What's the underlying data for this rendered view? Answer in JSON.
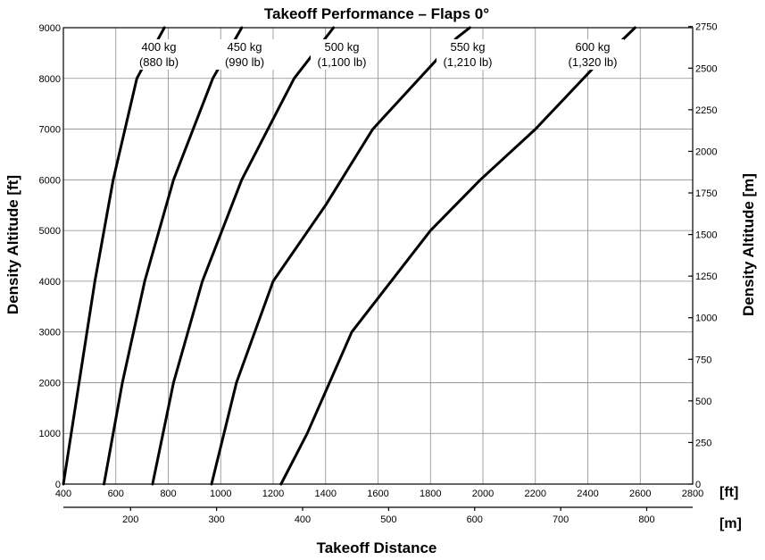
{
  "chart_data": {
    "type": "line",
    "title": "Takeoff Performance – Flaps 0°",
    "xlabel": "Takeoff Distance",
    "ylabel": "Density Altitude [ft]",
    "ylabel_right": "Density Altitude [m]",
    "x_unit_primary": "[ft]",
    "x_unit_secondary": "[m]",
    "xlim": [
      400,
      2800
    ],
    "ylim": [
      0,
      9000
    ],
    "grid": true,
    "x_ticks_ft": [
      400,
      600,
      800,
      1000,
      1200,
      1400,
      1600,
      1800,
      2000,
      2200,
      2400,
      2600,
      2800
    ],
    "x_ticks_m": [
      200,
      300,
      400,
      500,
      600,
      700,
      800
    ],
    "y_ticks_ft": [
      0,
      1000,
      2000,
      3000,
      4000,
      5000,
      6000,
      7000,
      8000,
      9000
    ],
    "y_ticks_m": [
      0,
      250,
      500,
      750,
      1000,
      1250,
      1500,
      1750,
      2000,
      2250,
      2500,
      2750
    ],
    "series": [
      {
        "name": "400 kg",
        "name2": "(880 lb)",
        "points": [
          [
            400,
            0
          ],
          [
            460,
            2000
          ],
          [
            520,
            4000
          ],
          [
            590,
            6000
          ],
          [
            680,
            8000
          ],
          [
            785,
            9000
          ]
        ]
      },
      {
        "name": "450 kg",
        "name2": "(990 lb)",
        "points": [
          [
            555,
            0
          ],
          [
            625,
            2000
          ],
          [
            710,
            4000
          ],
          [
            820,
            6000
          ],
          [
            970,
            8000
          ],
          [
            1080,
            9000
          ]
        ]
      },
      {
        "name": "500 kg",
        "name2": "(1,100 lb)",
        "points": [
          [
            740,
            0
          ],
          [
            820,
            2000
          ],
          [
            930,
            4000
          ],
          [
            1080,
            6000
          ],
          [
            1280,
            8000
          ],
          [
            1430,
            9000
          ]
        ]
      },
      {
        "name": "550 kg",
        "name2": "(1,210 lb)",
        "points": [
          [
            965,
            0
          ],
          [
            1060,
            2000
          ],
          [
            1200,
            4000
          ],
          [
            1400,
            5500
          ],
          [
            1580,
            7000
          ],
          [
            1900,
            8800
          ],
          [
            1950,
            9000
          ]
        ]
      },
      {
        "name": "600 kg",
        "name2": "(1,320 lb)",
        "points": [
          [
            1230,
            0
          ],
          [
            1330,
            1000
          ],
          [
            1500,
            3000
          ],
          [
            1800,
            5000
          ],
          [
            1990,
            6000
          ],
          [
            2200,
            7000
          ],
          [
            2420,
            8200
          ],
          [
            2580,
            9000
          ]
        ]
      }
    ]
  }
}
